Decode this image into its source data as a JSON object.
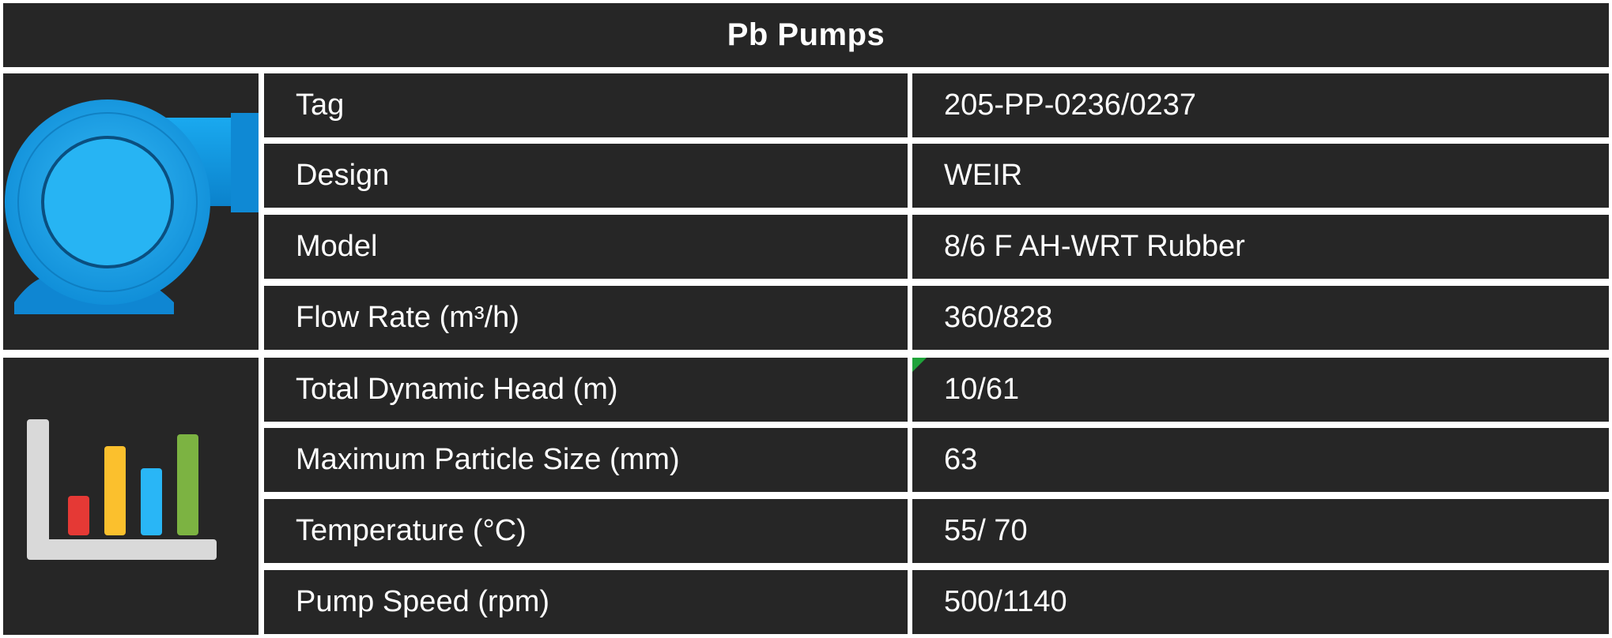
{
  "title": "Pb Pumps",
  "icons": {
    "top": "centrifugal-pump-icon",
    "bottom": "bar-chart-icon"
  },
  "colors": {
    "background": "#262626",
    "divider": "#ffffff",
    "text": "#ffffff",
    "pump": "#1aa3ec",
    "marker": "#1fa33a",
    "chart_bars": [
      "#e53935",
      "#fbc02d",
      "#29b6f6",
      "#7cb342"
    ],
    "chart_axis": "#d9d9d9"
  },
  "rows": [
    {
      "label": "Tag",
      "value": "205-PP-0236/0237"
    },
    {
      "label": "Design",
      "value": "WEIR"
    },
    {
      "label": "Model",
      "value": "8/6 F AH-WRT Rubber"
    },
    {
      "label": "Flow Rate (m³/h)",
      "value": "360/828"
    },
    {
      "label": "Total Dynamic Head (m)",
      "value": "10/61"
    },
    {
      "label": "Maximum Particle Size (mm)",
      "value": "63"
    },
    {
      "label": "Temperature (°C)",
      "value": "55/ 70"
    },
    {
      "label": "Pump Speed (rpm)",
      "value": "500/1140"
    }
  ]
}
